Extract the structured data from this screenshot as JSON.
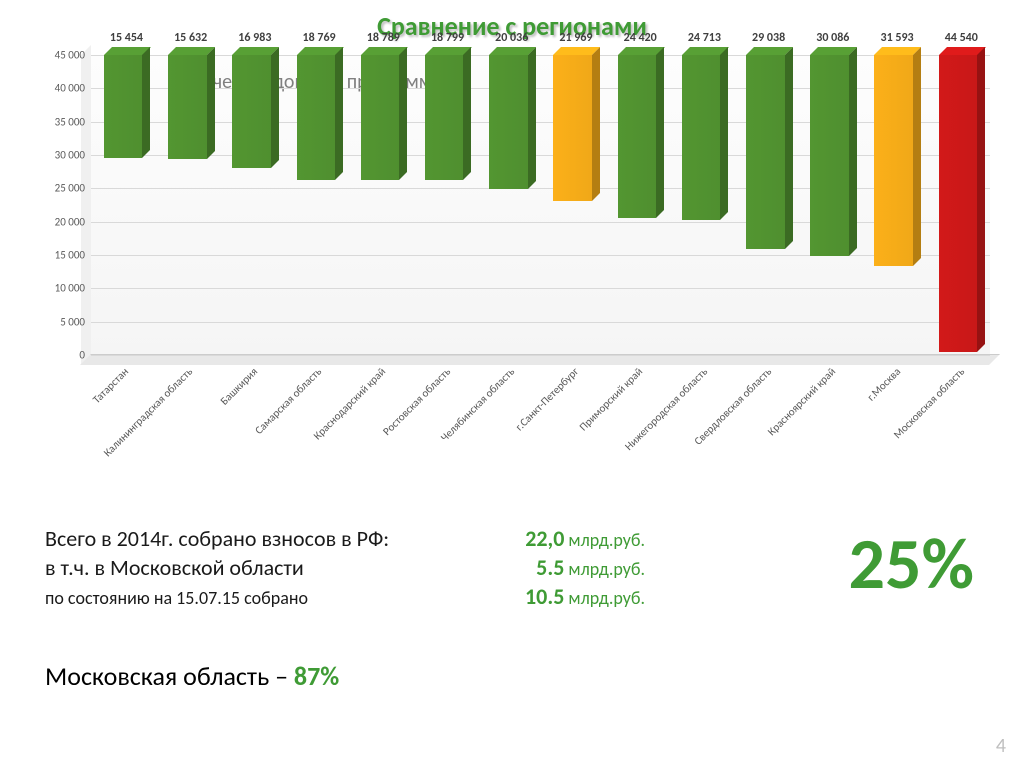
{
  "title": {
    "text": "Сравнение с регионами",
    "color": "#3f9b35",
    "fontsize": 26
  },
  "chart": {
    "type": "bar",
    "subtitle": "Количество домов в программе",
    "subtitle_fontsize": 20,
    "ylim": [
      0,
      45000
    ],
    "ytick_step": 5000,
    "ytick_fontsize": 11,
    "label_fontsize": 11,
    "value_label_fontsize": 12,
    "xlabel_fontsize": 11,
    "background": "#ffffff",
    "grid_color": "#d9d9d9",
    "bars": [
      {
        "category": "Татарстан",
        "value": 15454,
        "value_label": "15 454",
        "color": "#4f8f2f"
      },
      {
        "category": "Калининградская область",
        "value": 15632,
        "value_label": "15 632",
        "color": "#4f8f2f"
      },
      {
        "category": "Башкирия",
        "value": 16983,
        "value_label": "16 983",
        "color": "#4f8f2f"
      },
      {
        "category": "Самарская область",
        "value": 18769,
        "value_label": "18 769",
        "color": "#4f8f2f"
      },
      {
        "category": "Краснодарский край",
        "value": 18789,
        "value_label": "18 789",
        "color": "#4f8f2f"
      },
      {
        "category": "Ростовская область",
        "value": 18799,
        "value_label": "18 799",
        "color": "#4f8f2f"
      },
      {
        "category": "Челябинская область",
        "value": 20036,
        "value_label": "20 036",
        "color": "#4f8f2f"
      },
      {
        "category": "г.Санкт-Петербург",
        "value": 21969,
        "value_label": "21 969",
        "color": "#f0a818"
      },
      {
        "category": "Приморский край",
        "value": 24420,
        "value_label": "24 420",
        "color": "#4f8f2f"
      },
      {
        "category": "Нижегородская область",
        "value": 24713,
        "value_label": "24 713",
        "color": "#4f8f2f"
      },
      {
        "category": "Свердловская область",
        "value": 29038,
        "value_label": "29 038",
        "color": "#4f8f2f"
      },
      {
        "category": "Красноярский край",
        "value": 30086,
        "value_label": "30 086",
        "color": "#4f8f2f"
      },
      {
        "category": "г.Москва",
        "value": 31593,
        "value_label": "31 593",
        "color": "#f0a818"
      },
      {
        "category": "Московская область",
        "value": 44540,
        "value_label": "44 540",
        "color": "#c81818"
      }
    ],
    "bar_top_darken": 0.15,
    "bar_side_darken": 0.25
  },
  "summary": {
    "line1": {
      "label": "Всего в 2014г. собрано взносов в РФ:",
      "value_num": "22,0",
      "value_unit": " млрд.руб.",
      "value_color": "#3f9b35",
      "label_fontsize": 22,
      "value_fontsize": 22,
      "unit_fontsize": 18
    },
    "line2": {
      "label": "в т.ч. в Московской области",
      "value_num": "5.5",
      "value_unit": " млрд.руб.",
      "value_color": "#3f9b35",
      "label_fontsize": 22,
      "value_fontsize": 22,
      "unit_fontsize": 18
    },
    "line3": {
      "label": " по состоянию на 15.07.15 собрано",
      "value_num": "10.5",
      "value_unit": " млрд.руб.",
      "value_color": "#3f9b35",
      "label_fontsize": 18,
      "value_fontsize": 22,
      "unit_fontsize": 18
    },
    "big_percent": {
      "text": "25%",
      "color": "#3f9b35",
      "fontsize": 72
    },
    "region_line": {
      "prefix": "Московская область – ",
      "value": "87%",
      "value_color": "#3f9b35",
      "fontsize": 26
    }
  },
  "page_number": "4",
  "page_number_fontsize": 20
}
